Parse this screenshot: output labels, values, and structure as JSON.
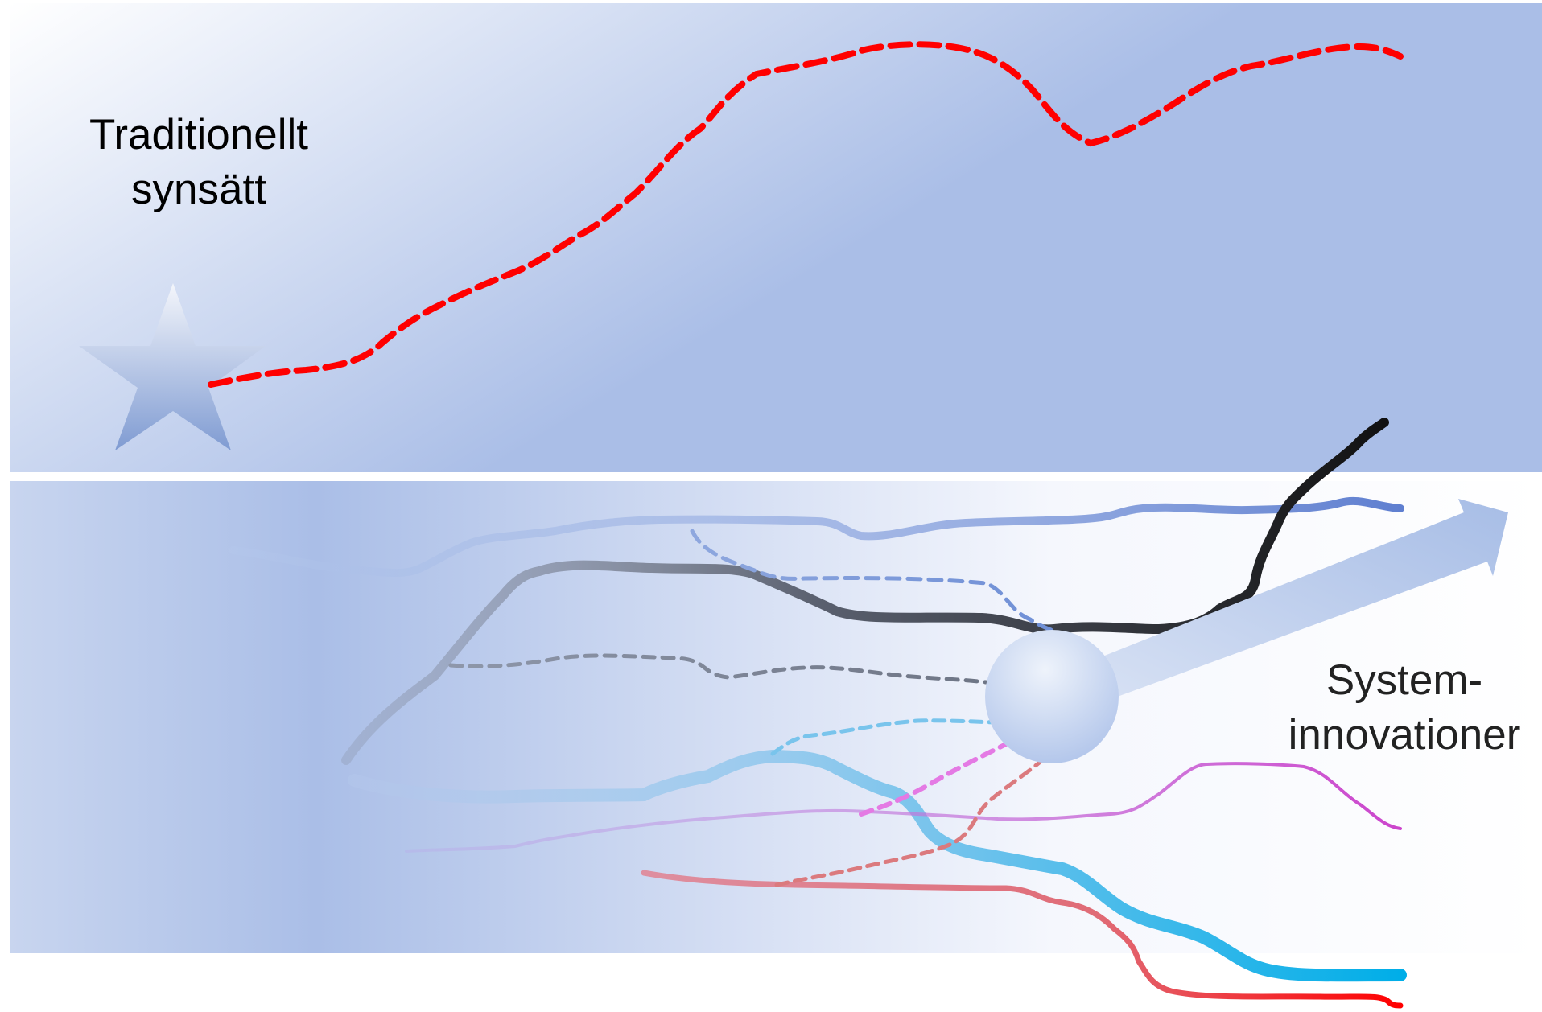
{
  "top_label": {
    "line1": "Traditionellt",
    "line2": "synsätt"
  },
  "bottom_label": {
    "line1": "System-",
    "line2": "innovationer"
  },
  "colors": {
    "traditional_path": "#ff0000",
    "black_path": "#111111",
    "blue_path": "#5f7fd0",
    "cyan_path": "#00aee8",
    "magenta_path": "#cc44cc",
    "red_path": "#ff0000",
    "panel_light": "#ffffff",
    "panel_dark": "#a9bde6"
  },
  "icons": {
    "star": "star-icon",
    "arrow": "arrow-icon",
    "convergence": "circle-icon"
  }
}
